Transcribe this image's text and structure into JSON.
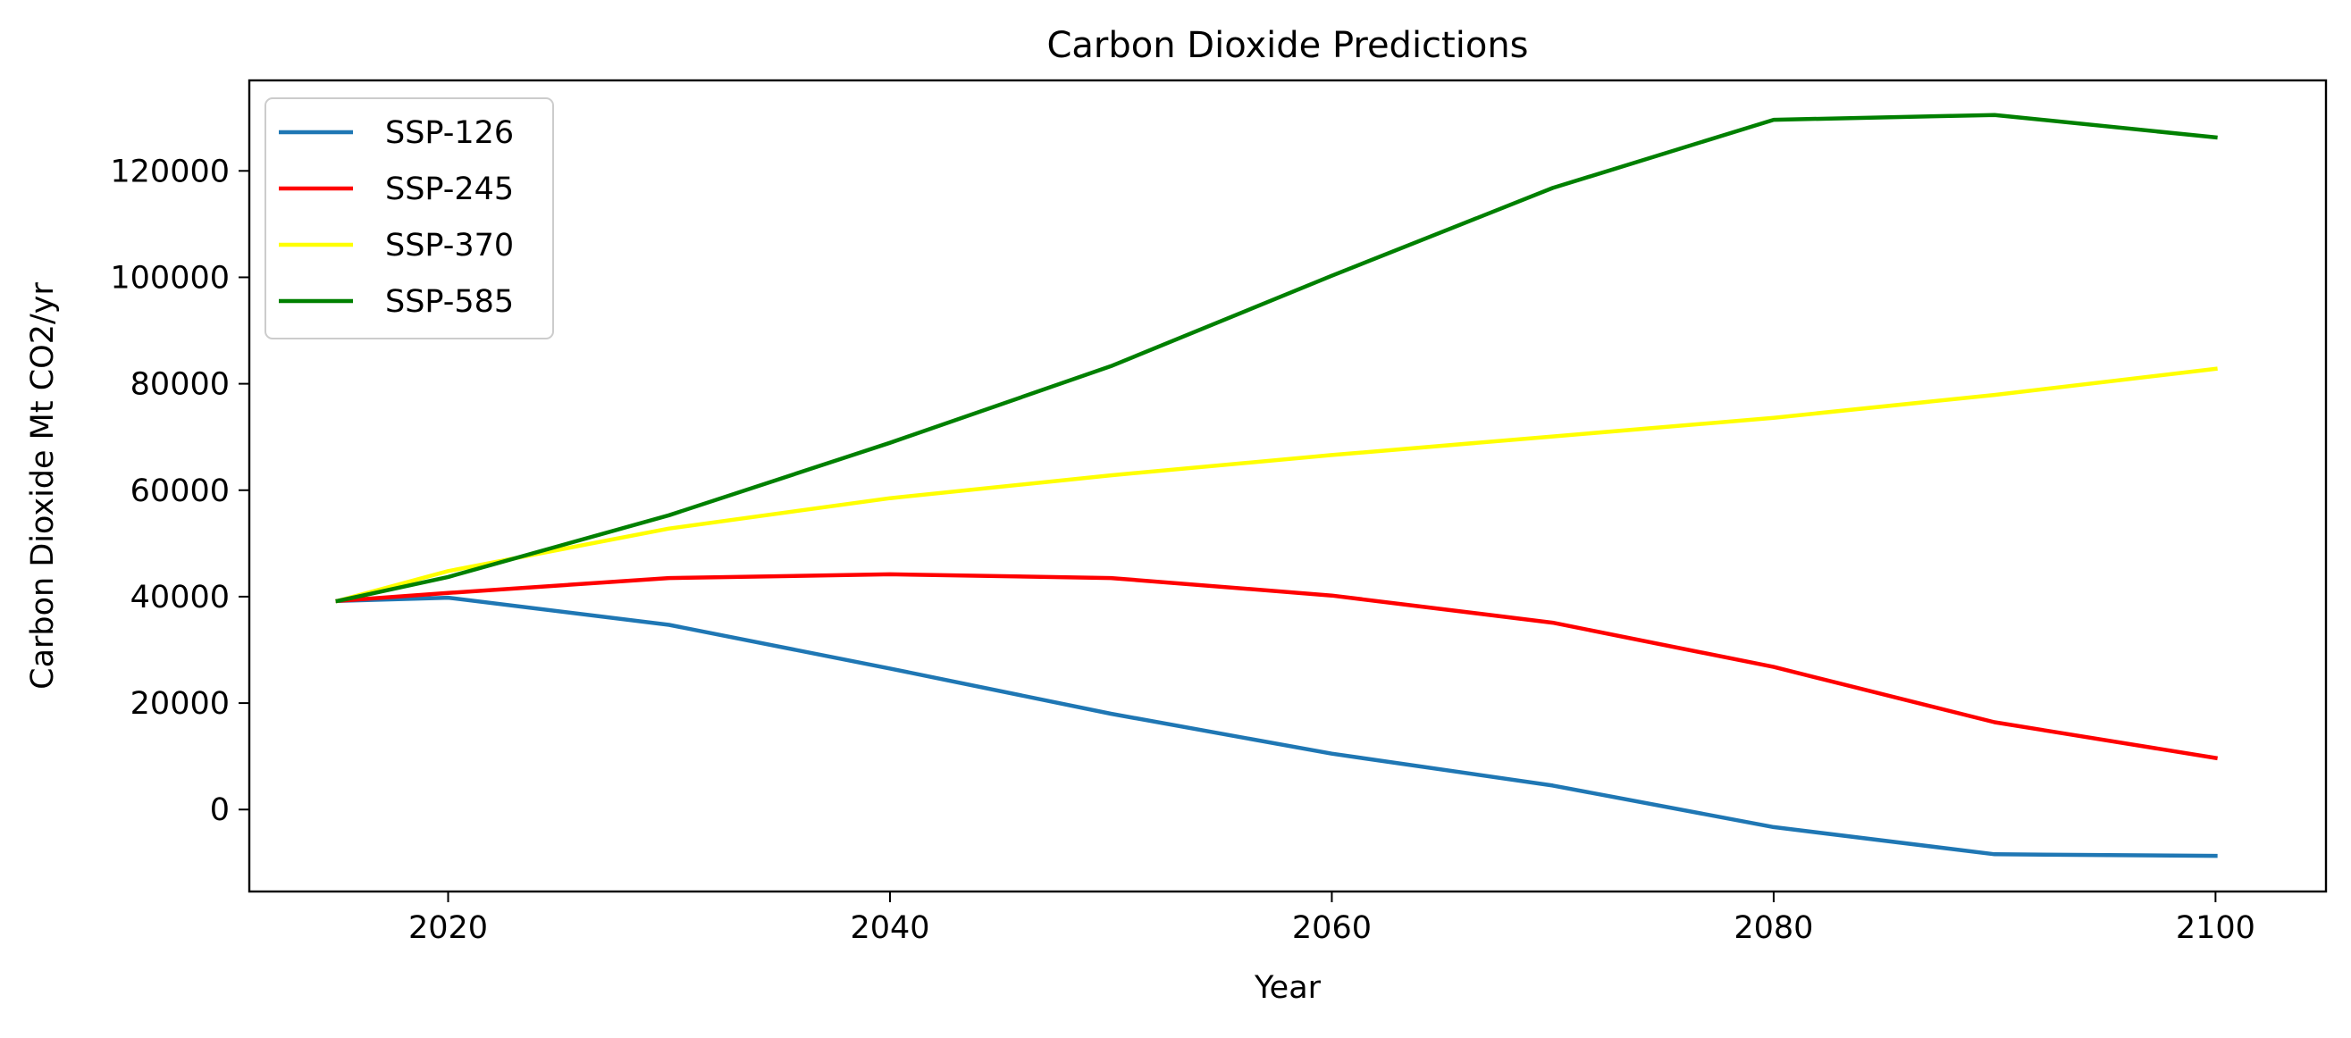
{
  "chart_data": {
    "type": "line",
    "title": "Carbon Dioxide Predictions",
    "xlabel": "Year",
    "ylabel": "Carbon Dioxide Mt CO2/yr",
    "x": [
      2015,
      2020,
      2030,
      2040,
      2050,
      2060,
      2070,
      2080,
      2090,
      2100
    ],
    "xlim": [
      2011,
      2105
    ],
    "ylim": [
      -15400,
      137000
    ],
    "xticks": [
      2020,
      2040,
      2060,
      2080,
      2100
    ],
    "yticks": [
      0,
      20000,
      40000,
      60000,
      80000,
      100000,
      120000
    ],
    "grid": false,
    "legend_position": "upper-left",
    "series": [
      {
        "name": "SSP-126",
        "color": "#1f77b4",
        "values": [
          39200,
          39800,
          34700,
          26500,
          18000,
          10500,
          4500,
          -3300,
          -8400,
          -8700
        ]
      },
      {
        "name": "SSP-245",
        "color": "#ff0000",
        "values": [
          39200,
          40700,
          43500,
          44200,
          43500,
          40200,
          35100,
          26800,
          16400,
          9700
        ]
      },
      {
        "name": "SSP-370",
        "color": "#ffff00",
        "values": [
          39200,
          44800,
          52800,
          58500,
          62800,
          66600,
          70100,
          73600,
          77900,
          82800
        ]
      },
      {
        "name": "SSP-585",
        "color": "#008000",
        "values": [
          39200,
          43700,
          55300,
          68900,
          83300,
          100300,
          116800,
          129600,
          130500,
          126300
        ]
      }
    ]
  }
}
